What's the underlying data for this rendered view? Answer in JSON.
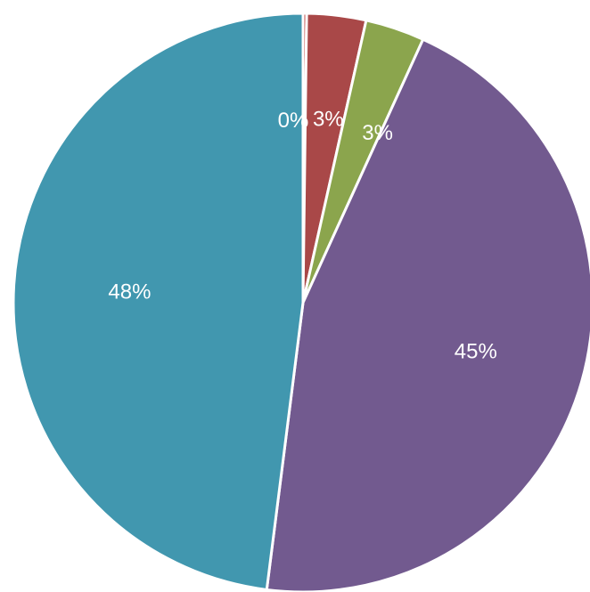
{
  "chart_data": {
    "type": "pie",
    "title": "",
    "start_angle_deg": 0,
    "direction": "clockwise",
    "slices": [
      {
        "value": 0.2,
        "label": "0%",
        "color": "#C0504D"
      },
      {
        "value": 3.3,
        "label": "3%",
        "color": "#A94848"
      },
      {
        "value": 3.3,
        "label": "3%",
        "color": "#8BA54D"
      },
      {
        "value": 45.2,
        "label": "45%",
        "color": "#725A8F"
      },
      {
        "value": 48.0,
        "label": "48%",
        "color": "#4197AF"
      }
    ],
    "legend": "none",
    "data_labels": "percent, inside"
  }
}
